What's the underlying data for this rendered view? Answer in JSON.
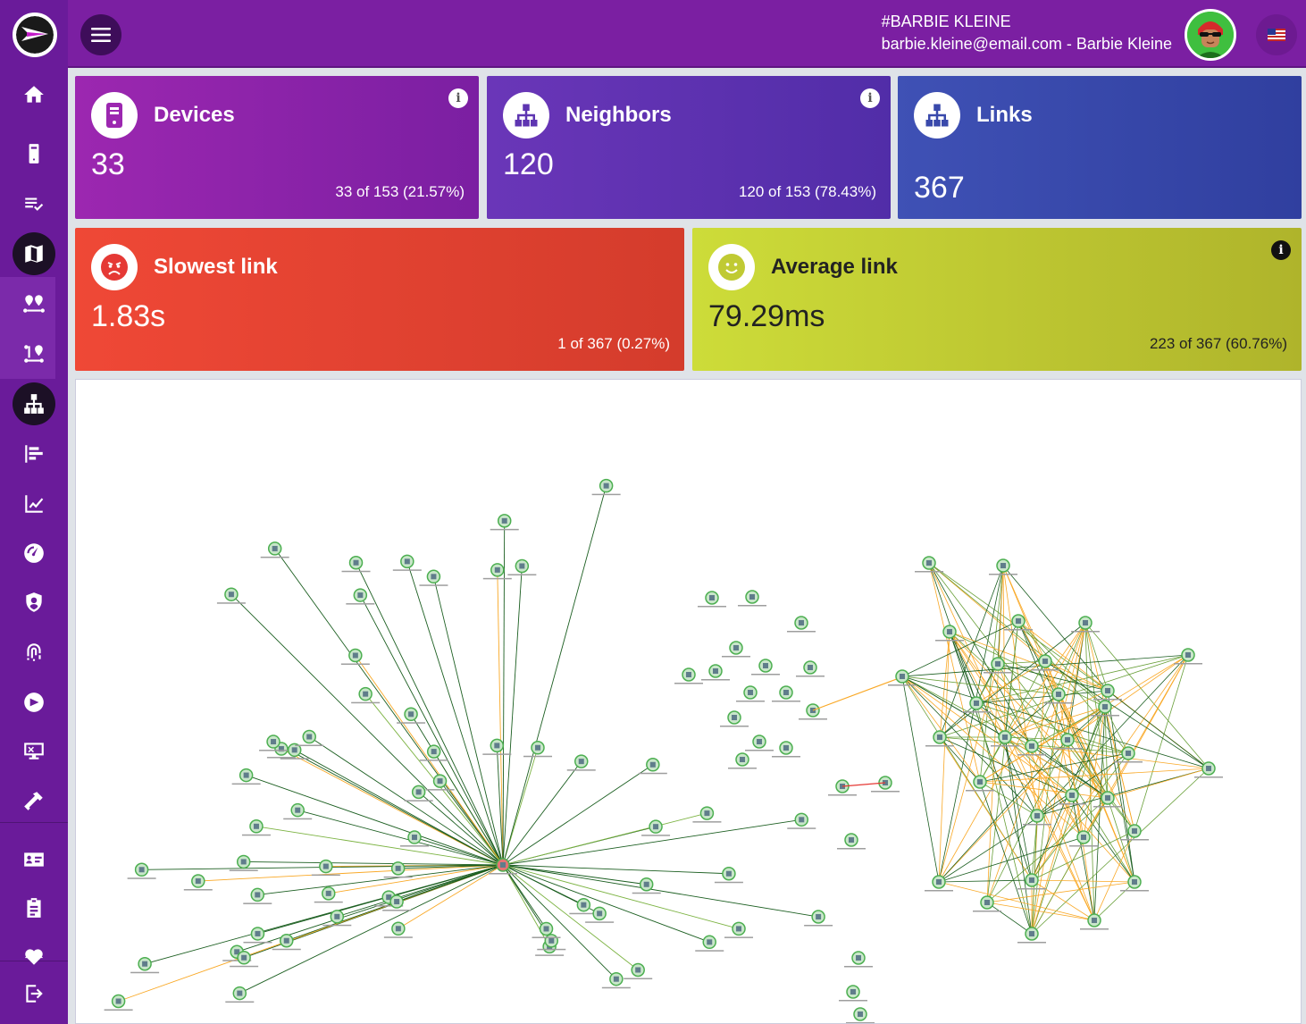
{
  "header": {
    "user_tag": "#BARBIE KLEINE",
    "user_line": "barbie.kleine@email.com - Barbie Kleine",
    "locale": "en-US"
  },
  "sidebar": {
    "items": [
      {
        "name": "home-icon"
      },
      {
        "name": "device-icon"
      },
      {
        "name": "checklist-icon"
      },
      {
        "name": "map-icon",
        "active": true
      },
      {
        "name": "routes-icon"
      },
      {
        "name": "route-alt-icon"
      },
      {
        "name": "topology-icon",
        "active": true
      },
      {
        "name": "bar-chart-icon"
      },
      {
        "name": "line-chart-icon"
      },
      {
        "name": "speedometer-icon"
      },
      {
        "name": "shield-icon"
      },
      {
        "name": "fingerprint-icon"
      },
      {
        "name": "arrow-circle-icon"
      },
      {
        "name": "monitor-icon"
      },
      {
        "name": "tool-icon"
      },
      {
        "name": "id-card-icon"
      },
      {
        "name": "clipboard-icon"
      },
      {
        "name": "health-icon"
      },
      {
        "name": "logout-icon"
      }
    ]
  },
  "cards": {
    "devices": {
      "title": "Devices",
      "value": "33",
      "sub": "33 of 153 (21.57%)",
      "info": "i"
    },
    "neighbors": {
      "title": "Neighbors",
      "value": "120",
      "sub": "120 of 153 (78.43%)",
      "info": "i"
    },
    "links": {
      "title": "Links",
      "value": "367"
    },
    "slowest": {
      "title": "Slowest link",
      "value": "1.83s",
      "sub": "1 of 367 (0.27%)"
    },
    "average": {
      "title": "Average link",
      "value": "79.29ms",
      "sub": "223 of 367 (60.76%)",
      "info": "i"
    }
  },
  "colors": {
    "sidebar": "#6a1b9a",
    "header": "#7b1fa2",
    "devices": "#9c27b0",
    "neighbors": "#5e35b1",
    "links": "#3949ab",
    "slowest": "#e53935",
    "average": "#c0ca33",
    "edge_green": "#1b5e20",
    "edge_yellow": "#f9a825"
  }
}
